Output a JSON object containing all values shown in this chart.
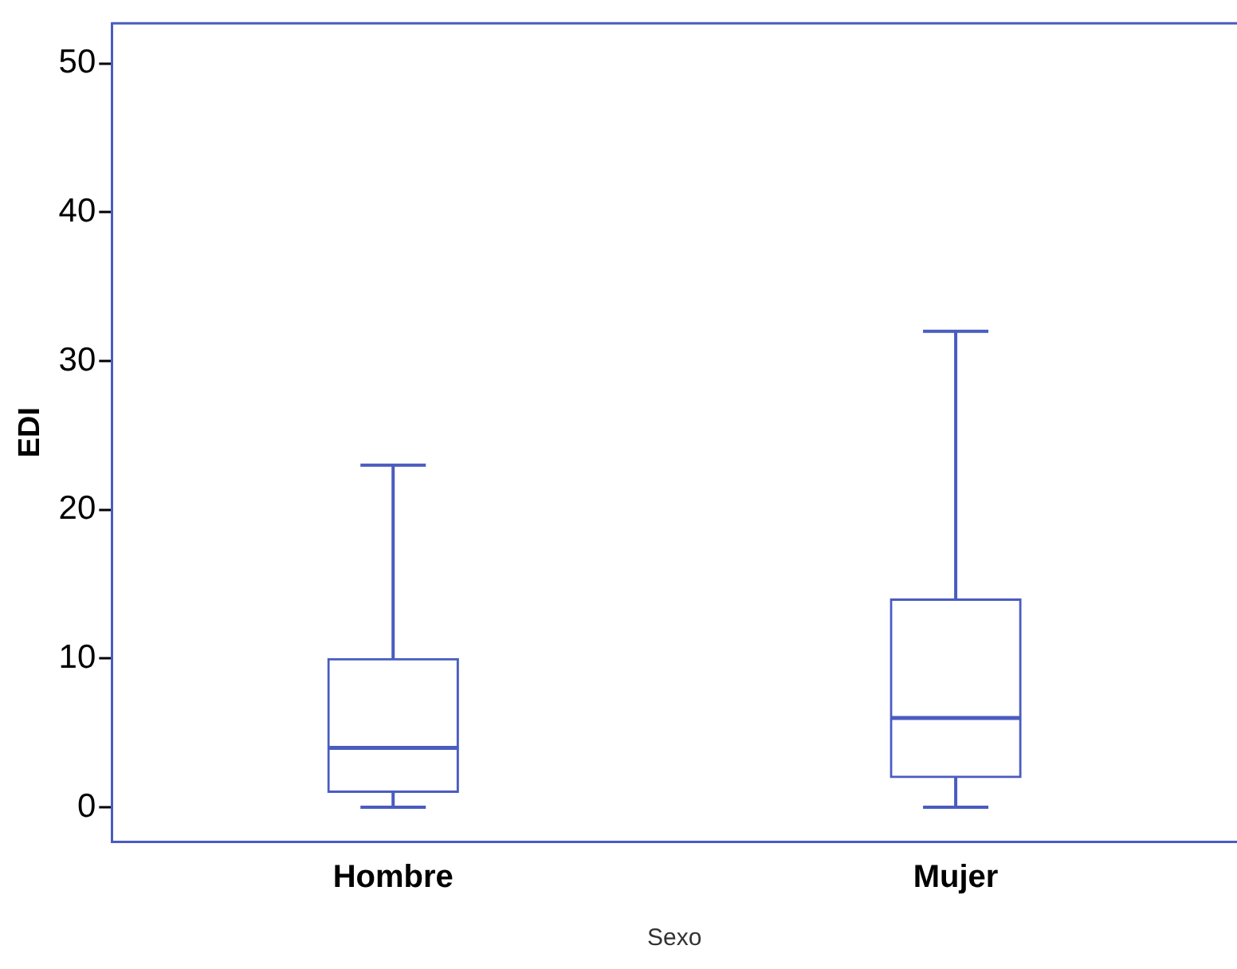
{
  "chart_data": {
    "type": "box",
    "xlabel": "Sexo",
    "ylabel": "EDI",
    "categories": [
      "Hombre",
      "Mujer"
    ],
    "series": [
      {
        "color": "#4a5cc0",
        "boxes": [
          {
            "low": 0,
            "q1": 1,
            "median": 4,
            "q3": 10,
            "high": 23
          },
          {
            "low": 0,
            "q1": 2,
            "median": 6,
            "q3": 14,
            "high": 32
          }
        ]
      }
    ],
    "ylim": [
      -2.3,
      52.7
    ],
    "yticks": [
      0,
      10,
      20,
      30,
      40,
      50
    ],
    "legend": false
  }
}
